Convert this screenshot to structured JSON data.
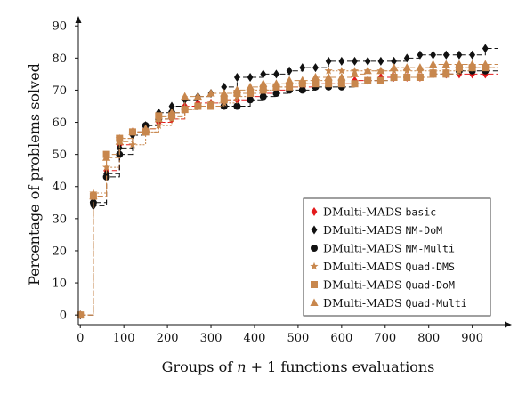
{
  "chart_data": {
    "type": "line",
    "title": "",
    "xlabel": "Groups of n + 1 functions evaluations",
    "ylabel": "Percentage of problems solved",
    "xlim": [
      -25,
      960
    ],
    "ylim": [
      -3,
      92
    ],
    "xticks": [
      0,
      100,
      200,
      300,
      400,
      500,
      600,
      700,
      800,
      900
    ],
    "yticks": [
      0,
      10,
      20,
      30,
      40,
      50,
      60,
      70,
      80,
      90
    ],
    "grid": false,
    "legend_position": "bottom-right",
    "legend_prefix": "DMulti-MADS",
    "series": [
      {
        "name": "basic",
        "color": "#e31a1c",
        "marker": "diamond",
        "dash": "6 3",
        "x": [
          0,
          30,
          60,
          90,
          120,
          150,
          180,
          210,
          240,
          270,
          300,
          330,
          360,
          390,
          420,
          450,
          480,
          510,
          540,
          570,
          600,
          630,
          660,
          690,
          720,
          750,
          780,
          810,
          840,
          870,
          900,
          930
        ],
        "y": [
          0,
          37,
          45,
          53,
          57,
          58,
          60,
          61,
          65,
          66,
          66,
          67,
          67,
          68,
          69,
          70,
          71,
          71,
          72,
          72,
          72,
          73,
          73,
          74,
          74,
          74,
          74,
          75,
          75,
          75,
          75,
          75
        ]
      },
      {
        "name": "NM-DoM",
        "color": "#111111",
        "marker": "diamond",
        "dash": "6 3",
        "x": [
          0,
          30,
          60,
          90,
          120,
          150,
          180,
          210,
          240,
          270,
          300,
          330,
          360,
          390,
          420,
          450,
          480,
          510,
          540,
          570,
          600,
          630,
          660,
          690,
          720,
          750,
          780,
          810,
          840,
          870,
          900,
          930
        ],
        "y": [
          0,
          34,
          44,
          52,
          56,
          59,
          63,
          65,
          67,
          68,
          69,
          71,
          74,
          74,
          75,
          75,
          76,
          77,
          77,
          79,
          79,
          79,
          79,
          79,
          79,
          80,
          81,
          81,
          81,
          81,
          81,
          83
        ]
      },
      {
        "name": "NM-Multi",
        "color": "#111111",
        "marker": "circle",
        "dash": "6 3",
        "x": [
          0,
          30,
          60,
          90,
          120,
          150,
          180,
          210,
          240,
          270,
          300,
          330,
          360,
          390,
          420,
          450,
          480,
          510,
          540,
          570,
          600,
          630,
          660,
          690,
          720,
          750,
          780,
          810,
          840,
          870,
          900,
          930
        ],
        "y": [
          0,
          35,
          43,
          50,
          57,
          59,
          61,
          63,
          64,
          65,
          65,
          65,
          65,
          67,
          68,
          69,
          70,
          70,
          71,
          71,
          71,
          72,
          73,
          73,
          74,
          74,
          74,
          75,
          75,
          76,
          76,
          76
        ]
      },
      {
        "name": "Quad-DMS",
        "color": "#c8874d",
        "marker": "star",
        "dash": "2 2",
        "x": [
          0,
          30,
          60,
          90,
          120,
          150,
          180,
          210,
          240,
          270,
          300,
          330,
          360,
          390,
          420,
          450,
          480,
          510,
          540,
          570,
          600,
          630,
          660,
          690,
          720,
          750,
          780,
          810,
          840,
          870,
          900,
          930
        ],
        "y": [
          0,
          38,
          46,
          55,
          53,
          57,
          59,
          61,
          64,
          65,
          66,
          66,
          68,
          70,
          70,
          71,
          72,
          72,
          73,
          76,
          76,
          76,
          76,
          76,
          76,
          76,
          76,
          76,
          76,
          76,
          77,
          77
        ]
      },
      {
        "name": "Quad-DoM",
        "color": "#c8874d",
        "marker": "square",
        "dash": "6 3",
        "x": [
          0,
          30,
          60,
          90,
          120,
          150,
          180,
          210,
          240,
          270,
          300,
          330,
          360,
          390,
          420,
          450,
          480,
          510,
          540,
          570,
          600,
          630,
          660,
          690,
          720,
          750,
          780,
          810,
          840,
          870,
          900,
          930
        ],
        "y": [
          0,
          37,
          50,
          55,
          57,
          57,
          62,
          62,
          64,
          65,
          65,
          67,
          69,
          69,
          70,
          71,
          71,
          72,
          72,
          72,
          72,
          72,
          73,
          73,
          74,
          74,
          74,
          75,
          75,
          77,
          77,
          77
        ]
      },
      {
        "name": "Quad-Multi",
        "color": "#c8874d",
        "marker": "triangle",
        "dash": "6 3",
        "x": [
          0,
          30,
          60,
          90,
          120,
          150,
          180,
          210,
          240,
          270,
          300,
          330,
          360,
          390,
          420,
          450,
          480,
          510,
          540,
          570,
          600,
          630,
          660,
          690,
          720,
          750,
          780,
          810,
          840,
          870,
          900,
          930
        ],
        "y": [
          0,
          37,
          49,
          54,
          57,
          58,
          61,
          63,
          68,
          68,
          69,
          69,
          70,
          71,
          72,
          72,
          73,
          73,
          74,
          74,
          74,
          75,
          76,
          76,
          77,
          77,
          77,
          78,
          78,
          78,
          78,
          78
        ]
      }
    ]
  }
}
